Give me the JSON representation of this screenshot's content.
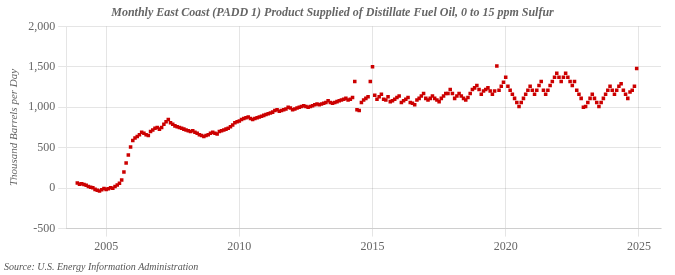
{
  "chart_data": {
    "type": "scatter",
    "title": "Monthly East Coast (PADD 1) Product Supplied of Distillate Fuel Oil, 0 to 15 ppm Sulfur",
    "ylabel": "Thousand Barrels per Day",
    "source": "Source: U.S. Energy Information Administration",
    "color": "#CC0000",
    "marker": "square",
    "grid": true,
    "xlim": [
      2003.5,
      2025.83
    ],
    "xticks": [
      2005,
      2010,
      2015,
      2020,
      2025
    ],
    "ylim": [
      -500,
      2000
    ],
    "yticks": [
      -500,
      0,
      500,
      {
        "value": 1000,
        "label": "1,000"
      },
      {
        "value": 1500,
        "label": "1,500"
      },
      {
        "value": 2000,
        "label": "2,000"
      }
    ],
    "x": [
      2003.917,
      2004.0,
      2004.083,
      2004.167,
      2004.25,
      2004.333,
      2004.417,
      2004.5,
      2004.583,
      2004.667,
      2004.75,
      2004.833,
      2004.917,
      2005.0,
      2005.083,
      2005.167,
      2005.25,
      2005.333,
      2005.417,
      2005.5,
      2005.583,
      2005.667,
      2005.75,
      2005.833,
      2005.917,
      2006.0,
      2006.083,
      2006.167,
      2006.25,
      2006.333,
      2006.417,
      2006.5,
      2006.583,
      2006.667,
      2006.75,
      2006.833,
      2006.917,
      2007.0,
      2007.083,
      2007.167,
      2007.25,
      2007.333,
      2007.417,
      2007.5,
      2007.583,
      2007.667,
      2007.75,
      2007.833,
      2007.917,
      2008.0,
      2008.083,
      2008.167,
      2008.25,
      2008.333,
      2008.417,
      2008.5,
      2008.583,
      2008.667,
      2008.75,
      2008.833,
      2008.917,
      2009.0,
      2009.083,
      2009.167,
      2009.25,
      2009.333,
      2009.417,
      2009.5,
      2009.583,
      2009.667,
      2009.75,
      2009.833,
      2009.917,
      2010.0,
      2010.083,
      2010.167,
      2010.25,
      2010.333,
      2010.417,
      2010.5,
      2010.583,
      2010.667,
      2010.75,
      2010.833,
      2010.917,
      2011.0,
      2011.083,
      2011.167,
      2011.25,
      2011.333,
      2011.417,
      2011.5,
      2011.583,
      2011.667,
      2011.75,
      2011.833,
      2011.917,
      2012.0,
      2012.083,
      2012.167,
      2012.25,
      2012.333,
      2012.417,
      2012.5,
      2012.583,
      2012.667,
      2012.75,
      2012.833,
      2012.917,
      2013.0,
      2013.083,
      2013.167,
      2013.25,
      2013.333,
      2013.417,
      2013.5,
      2013.583,
      2013.667,
      2013.75,
      2013.833,
      2013.917,
      2014.0,
      2014.083,
      2014.167,
      2014.25,
      2014.333,
      2014.417,
      2014.5,
      2014.583,
      2014.667,
      2014.75,
      2014.833,
      2014.917,
      2015.0,
      2015.083,
      2015.167,
      2015.25,
      2015.333,
      2015.417,
      2015.5,
      2015.583,
      2015.667,
      2015.75,
      2015.833,
      2015.917,
      2016.0,
      2016.083,
      2016.167,
      2016.25,
      2016.333,
      2016.417,
      2016.5,
      2016.583,
      2016.667,
      2016.75,
      2016.833,
      2016.917,
      2017.0,
      2017.083,
      2017.167,
      2017.25,
      2017.333,
      2017.417,
      2017.5,
      2017.583,
      2017.667,
      2017.75,
      2017.833,
      2017.917,
      2018.0,
      2018.083,
      2018.167,
      2018.25,
      2018.333,
      2018.417,
      2018.5,
      2018.583,
      2018.667,
      2018.75,
      2018.833,
      2018.917,
      2019.0,
      2019.083,
      2019.167,
      2019.25,
      2019.333,
      2019.417,
      2019.5,
      2019.583,
      2019.667,
      2019.75,
      2019.833,
      2019.917,
      2020.0,
      2020.083,
      2020.167,
      2020.25,
      2020.333,
      2020.417,
      2020.5,
      2020.583,
      2020.667,
      2020.75,
      2020.833,
      2020.917,
      2021.0,
      2021.083,
      2021.167,
      2021.25,
      2021.333,
      2021.417,
      2021.5,
      2021.583,
      2021.667,
      2021.75,
      2021.833,
      2021.917,
      2022.0,
      2022.083,
      2022.167,
      2022.25,
      2022.333,
      2022.417,
      2022.5,
      2022.583,
      2022.667,
      2022.75,
      2022.833,
      2022.917,
      2023.0,
      2023.083,
      2023.167,
      2023.25,
      2023.333,
      2023.417,
      2023.5,
      2023.583,
      2023.667,
      2023.75,
      2023.833,
      2023.917,
      2024.0,
      2024.083,
      2024.167,
      2024.25,
      2024.333,
      2024.417,
      2024.5,
      2024.583,
      2024.667,
      2024.75,
      2024.833,
      2024.917
    ],
    "values": [
      65,
      50,
      55,
      45,
      35,
      20,
      10,
      5,
      -15,
      -25,
      -35,
      -20,
      -5,
      -15,
      -8,
      5,
      0,
      20,
      40,
      60,
      100,
      200,
      310,
      410,
      510,
      590,
      620,
      640,
      660,
      690,
      680,
      660,
      650,
      700,
      720,
      740,
      750,
      730,
      750,
      790,
      820,
      850,
      810,
      790,
      770,
      760,
      750,
      740,
      730,
      720,
      710,
      700,
      710,
      690,
      680,
      660,
      650,
      640,
      650,
      660,
      680,
      690,
      680,
      670,
      700,
      710,
      720,
      730,
      740,
      760,
      780,
      810,
      820,
      830,
      850,
      860,
      870,
      880,
      860,
      850,
      860,
      870,
      880,
      890,
      900,
      910,
      920,
      930,
      940,
      960,
      970,
      950,
      960,
      970,
      980,
      1000,
      990,
      970,
      980,
      990,
      1000,
      1010,
      1020,
      1010,
      1000,
      1010,
      1020,
      1030,
      1040,
      1030,
      1040,
      1050,
      1060,
      1080,
      1060,
      1050,
      1060,
      1070,
      1080,
      1090,
      1100,
      1110,
      1090,
      1100,
      1120,
      1320,
      970,
      960,
      1060,
      1090,
      1110,
      1130,
      1320,
      1500,
      1150,
      1100,
      1130,
      1160,
      1100,
      1090,
      1130,
      1070,
      1080,
      1100,
      1120,
      1140,
      1060,
      1080,
      1100,
      1120,
      1060,
      1050,
      1030,
      1090,
      1110,
      1140,
      1170,
      1110,
      1090,
      1110,
      1140,
      1110,
      1090,
      1070,
      1110,
      1140,
      1170,
      1170,
      1220,
      1170,
      1110,
      1140,
      1170,
      1140,
      1110,
      1090,
      1120,
      1170,
      1220,
      1240,
      1270,
      1220,
      1160,
      1200,
      1220,
      1240,
      1200,
      1160,
      1200,
      1510,
      1210,
      1260,
      1310,
      1370,
      1260,
      1210,
      1160,
      1110,
      1060,
      1010,
      1060,
      1110,
      1160,
      1210,
      1260,
      1210,
      1160,
      1210,
      1270,
      1320,
      1210,
      1160,
      1210,
      1270,
      1320,
      1370,
      1420,
      1370,
      1320,
      1370,
      1420,
      1370,
      1320,
      1270,
      1320,
      1210,
      1160,
      1110,
      1000,
      1010,
      1060,
      1110,
      1160,
      1110,
      1060,
      1010,
      1060,
      1110,
      1160,
      1210,
      1260,
      1210,
      1160,
      1210,
      1260,
      1290,
      1210,
      1160,
      1110,
      1190,
      1210,
      1260,
      1480
    ]
  }
}
